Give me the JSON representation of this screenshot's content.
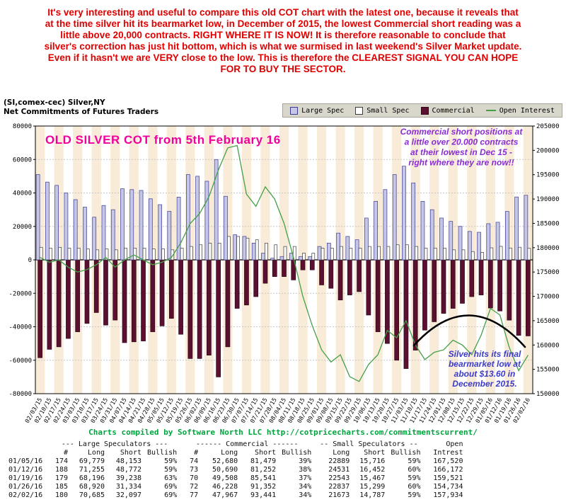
{
  "commentary": {
    "text": "It's very interesting and useful to compare this old COT chart with the latest one, because it reveals that at the time silver hit its bearmarket low, in December of 2015, the lowest Commercial short reading was a little above 20,000 contracts. RIGHT WHERE IT IS NOW! It is therefore reasonable to conclude that silver's correction has just hit bottom, which is what we surmised in last weekend's Silver Market update. Even if it hasn't we are VERY close to the low. This is therefore the CLEAREST SIGNAL YOU CAN HOPE FOR TO BUY THE SECTOR.",
    "color": "#e00000"
  },
  "header": {
    "instrument": "(SI,comex-cec) Silver,NY",
    "subtitle": "Net Commitments of Futures Traders",
    "legend": [
      {
        "label": "Large Spec",
        "swatch": "box",
        "fill": "#c6c6e8",
        "stroke": "#3c3c8a"
      },
      {
        "label": "Small Spec",
        "swatch": "box",
        "fill": "#ffffff",
        "stroke": "#3a3a3a"
      },
      {
        "label": "Commercial",
        "swatch": "box",
        "fill": "#5a102e",
        "stroke": "#30081a"
      },
      {
        "label": "Open Interest",
        "swatch": "line",
        "fill": "#44a048"
      }
    ]
  },
  "chart_data": {
    "type": "bar+line",
    "title": "(SI,comex-cec) Silver,NY - Net Commitments of Futures Traders",
    "x": [
      "02/03/15",
      "02/10/15",
      "02/17/15",
      "02/24/15",
      "03/03/15",
      "03/10/15",
      "03/17/15",
      "03/24/15",
      "03/31/15",
      "04/07/15",
      "04/14/15",
      "04/21/15",
      "04/28/15",
      "05/05/15",
      "05/12/15",
      "05/19/15",
      "05/26/15",
      "06/02/15",
      "06/09/15",
      "06/16/15",
      "06/23/15",
      "06/30/15",
      "07/07/15",
      "07/14/15",
      "07/21/15",
      "07/28/15",
      "08/04/15",
      "08/11/15",
      "08/18/15",
      "08/25/15",
      "09/01/15",
      "09/08/15",
      "09/15/15",
      "09/22/15",
      "09/29/15",
      "10/06/15",
      "10/13/15",
      "10/20/15",
      "10/27/15",
      "11/03/15",
      "11/10/15",
      "11/17/15",
      "11/24/15",
      "12/01/15",
      "12/08/15",
      "12/15/15",
      "12/22/15",
      "12/29/15",
      "01/05/16",
      "01/12/16",
      "01/19/16",
      "01/26/16",
      "02/02/16"
    ],
    "series": [
      {
        "name": "Large Spec",
        "type": "bar",
        "axis": "left",
        "fill": "#c6c6e8",
        "stroke": "#3c3c8a",
        "values": [
          51000,
          46500,
          44500,
          40000,
          36000,
          31500,
          25500,
          32500,
          30000,
          42500,
          42000,
          41500,
          36500,
          33000,
          29000,
          37500,
          51000,
          50000,
          47000,
          60000,
          38000,
          15000,
          14000,
          10000,
          4000,
          1000,
          2000,
          4000,
          2000,
          2000,
          8000,
          10000,
          16000,
          14000,
          12000,
          25000,
          35000,
          42000,
          51000,
          56000,
          46000,
          35000,
          30000,
          25000,
          23000,
          20000,
          17000,
          16500,
          21626,
          22483,
          28958,
          37586,
          38588
        ]
      },
      {
        "name": "Small Spec",
        "type": "bar",
        "axis": "left",
        "fill": "#ffffff",
        "stroke": "#3a3a3a",
        "values": [
          7500,
          7000,
          7500,
          7000,
          7000,
          6500,
          6000,
          6500,
          6000,
          7000,
          7000,
          7000,
          6500,
          6500,
          6000,
          7000,
          8000,
          9000,
          10000,
          10000,
          14000,
          14000,
          13000,
          12000,
          10000,
          9000,
          8000,
          8000,
          4000,
          4000,
          7000,
          7000,
          8000,
          7000,
          7000,
          8000,
          8000,
          8000,
          9000,
          9000,
          8000,
          7000,
          7000,
          7000,
          6000,
          6000,
          5000,
          4500,
          7173,
          8079,
          7076,
          7538,
          6886
        ]
      },
      {
        "name": "Commercial",
        "type": "bar",
        "axis": "left",
        "fill": "#5a102e",
        "stroke": "#30081a",
        "values": [
          -58500,
          -53500,
          -52000,
          -47000,
          -43000,
          -38000,
          -31500,
          -39000,
          -36000,
          -49500,
          -49000,
          -48500,
          -43000,
          -39500,
          -35000,
          -44500,
          -59000,
          -59000,
          -57000,
          -70000,
          -52000,
          -29000,
          -27000,
          -22000,
          -14000,
          -10000,
          -10000,
          -12000,
          -6000,
          -6000,
          -15000,
          -17000,
          -24000,
          -21000,
          -19000,
          -33000,
          -43000,
          -50000,
          -60000,
          -65000,
          -54000,
          -42000,
          -37000,
          -32000,
          -29000,
          -26000,
          -22000,
          -21000,
          -28799,
          -30562,
          -36033,
          -45124,
          -45474
        ]
      },
      {
        "name": "Open Interest",
        "type": "line",
        "axis": "right",
        "stroke": "#44a048",
        "values": [
          178000,
          177000,
          177500,
          176000,
          175000,
          175500,
          176500,
          178000,
          176000,
          177500,
          178500,
          177500,
          176500,
          177000,
          178000,
          181000,
          185000,
          187000,
          190500,
          196000,
          200500,
          201000,
          191000,
          188500,
          192500,
          190000,
          185000,
          178000,
          170000,
          164000,
          159000,
          156500,
          158000,
          153500,
          152500,
          156000,
          158000,
          163000,
          161500,
          165000,
          160000,
          157000,
          158500,
          159000,
          161000,
          160000,
          158000,
          162000,
          167520,
          166172,
          159521,
          154734,
          157934
        ]
      }
    ],
    "left_axis": {
      "min": -80000,
      "max": 80000,
      "step": 20000,
      "ticks": [
        "80000",
        "60000",
        "40000",
        "20000",
        "0",
        "-20000",
        "-40000",
        "-60000",
        "-80000"
      ]
    },
    "right_axis": {
      "min": 150000,
      "max": 205000,
      "step": 5000,
      "ticks": [
        "205000",
        "200000",
        "195000",
        "190000",
        "185000",
        "180000",
        "175000",
        "170000",
        "165000",
        "160000",
        "155000",
        "150000"
      ]
    },
    "background": {
      "stripe": "#f8ecd8",
      "grid": "#c6c6c6",
      "zero_line": "#000000"
    },
    "legend_position": "top-right",
    "grid": true
  },
  "annotations": {
    "overlay_title": {
      "text": "OLD SILVER COT from 5th February 16",
      "color": "#f0009c"
    },
    "commercial_note": {
      "lines": [
        "Commercial short positions at",
        "a little over 20.000 contracts",
        "at their lowest in Dec 15 -",
        "right where they are now!!"
      ],
      "color": "#8a2bd6"
    },
    "low_note": {
      "lines": [
        "Silver hits its final",
        "bearmarket low at",
        "about $13.60 in",
        "December 2015."
      ],
      "color": "#3c3cc8"
    },
    "arc_color": "#000000"
  },
  "footer": {
    "credit": "Charts compiled by Software North LLC http://cotpricecharts.com/commitmentscurrent/",
    "color": "#00a43e"
  },
  "table": {
    "group_headers": [
      "--- Large Speculators ---",
      "------ Commercial ------",
      "-- Small Speculators --",
      "Open"
    ],
    "col_headers": [
      "#",
      "Long",
      "Short",
      "Bullish",
      "#",
      "Long",
      "Short",
      "Bullish",
      "Long",
      "Short",
      "Bullish",
      "Intrest"
    ],
    "rows": [
      [
        "01/05/16",
        "174",
        "69,779",
        "48,153",
        "59%",
        "74",
        "52,680",
        "81,479",
        "39%",
        "22889",
        "15,716",
        "59%",
        "167,520"
      ],
      [
        "01/12/16",
        "188",
        "71,255",
        "48,772",
        "59%",
        "73",
        "50,690",
        "81,252",
        "38%",
        "24531",
        "16,452",
        "60%",
        "166,172"
      ],
      [
        "01/19/16",
        "179",
        "68,196",
        "39,238",
        "63%",
        "70",
        "49,508",
        "85,541",
        "37%",
        "22543",
        "15,467",
        "59%",
        "159,521"
      ],
      [
        "01/26/16",
        "185",
        "68,920",
        "31,334",
        "69%",
        "72",
        "46,228",
        "91,352",
        "34%",
        "22837",
        "15,299",
        "60%",
        "154,734"
      ],
      [
        "02/02/16",
        "180",
        "70,685",
        "32,097",
        "69%",
        "77",
        "47,967",
        "93,441",
        "34%",
        "21673",
        "14,787",
        "59%",
        "157,934"
      ]
    ]
  }
}
